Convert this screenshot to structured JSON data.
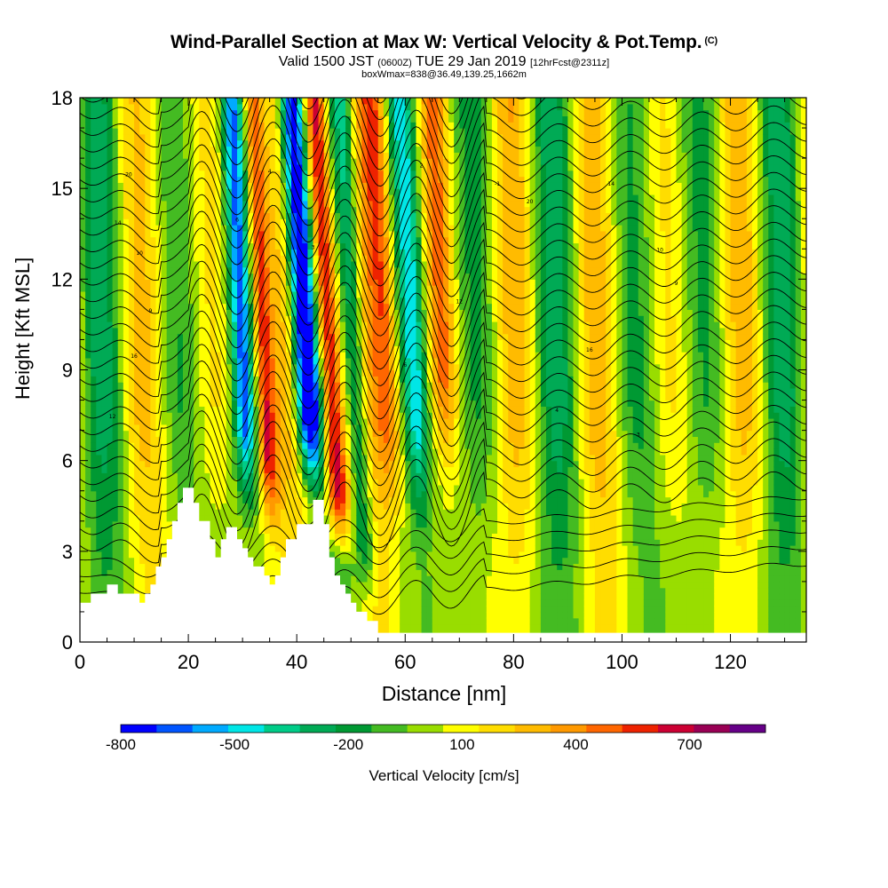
{
  "header": {
    "title": "Wind-Parallel Section at Max W: Vertical Velocity & Pot.Temp.",
    "title_mark": "(C)",
    "valid_prefix": "Valid 1500 JST",
    "valid_zulu": "(0600Z)",
    "valid_date": "TUE 29 Jan 2019",
    "forecast": "[12hrFcst@2311z]",
    "box_info": "boxWmax=838@36.49,139.25,1662m"
  },
  "chart_data": {
    "type": "heatmap",
    "xlabel": "Distance [nm]",
    "ylabel": "Height [Kft MSL]",
    "xlim": [
      0,
      134
    ],
    "ylim": [
      0,
      18
    ],
    "x_ticks": [
      0,
      20,
      40,
      60,
      80,
      100,
      120
    ],
    "y_ticks": [
      0,
      3,
      6,
      9,
      12,
      15,
      18
    ],
    "colorbar": {
      "label": "Vertical Velocity [cm/s]",
      "tick_labels": [
        "-800",
        "-500",
        "-200",
        "100",
        "400",
        "700"
      ],
      "tick_values": [
        -800,
        -500,
        -200,
        100,
        400,
        700
      ],
      "range": [
        -800,
        900
      ],
      "colors": [
        "#0000ff",
        "#0055ff",
        "#00aaff",
        "#00e6e6",
        "#00cc88",
        "#00aa55",
        "#009933",
        "#44bb22",
        "#99dd00",
        "#ffff00",
        "#ffdd00",
        "#ffbb00",
        "#ff9900",
        "#ff6600",
        "#ee2200",
        "#cc0033",
        "#990055",
        "#660088"
      ]
    },
    "terrain": [
      [
        0,
        1.3
      ],
      [
        2,
        1.3
      ],
      [
        2,
        1.6
      ],
      [
        5,
        1.6
      ],
      [
        5,
        1.9
      ],
      [
        7,
        1.9
      ],
      [
        7,
        1.6
      ],
      [
        11,
        1.6
      ],
      [
        11,
        1.3
      ],
      [
        12,
        1.3
      ],
      [
        12,
        1.6
      ],
      [
        13,
        1.6
      ],
      [
        13,
        1.9
      ],
      [
        14,
        1.9
      ],
      [
        14,
        2.5
      ],
      [
        15,
        2.5
      ],
      [
        15,
        2.8
      ],
      [
        16,
        2.8
      ],
      [
        16,
        3.4
      ],
      [
        17,
        3.4
      ],
      [
        17,
        4.0
      ],
      [
        18,
        4.0
      ],
      [
        18,
        4.6
      ],
      [
        19,
        4.6
      ],
      [
        19,
        5.1
      ],
      [
        21,
        5.1
      ],
      [
        21,
        4.6
      ],
      [
        22,
        4.6
      ],
      [
        22,
        4.0
      ],
      [
        24,
        4.0
      ],
      [
        24,
        3.4
      ],
      [
        25,
        3.4
      ],
      [
        25,
        2.8
      ],
      [
        26,
        2.8
      ],
      [
        26,
        3.4
      ],
      [
        27,
        3.4
      ],
      [
        27,
        3.8
      ],
      [
        29,
        3.8
      ],
      [
        29,
        3.4
      ],
      [
        30,
        3.4
      ],
      [
        30,
        3.1
      ],
      [
        31,
        3.1
      ],
      [
        31,
        2.8
      ],
      [
        32,
        2.8
      ],
      [
        32,
        2.5
      ],
      [
        34,
        2.5
      ],
      [
        34,
        2.2
      ],
      [
        35,
        2.2
      ],
      [
        35,
        1.9
      ],
      [
        36,
        1.9
      ],
      [
        36,
        2.2
      ],
      [
        37,
        2.2
      ],
      [
        37,
        2.8
      ],
      [
        38,
        2.8
      ],
      [
        38,
        3.4
      ],
      [
        40,
        3.4
      ],
      [
        40,
        3.9
      ],
      [
        43,
        3.9
      ],
      [
        43,
        4.7
      ],
      [
        45,
        4.7
      ],
      [
        45,
        3.9
      ],
      [
        46,
        3.9
      ],
      [
        46,
        2.8
      ],
      [
        47,
        2.8
      ],
      [
        47,
        2.2
      ],
      [
        48,
        2.2
      ],
      [
        48,
        1.9
      ],
      [
        49,
        1.9
      ],
      [
        49,
        1.6
      ],
      [
        50,
        1.6
      ],
      [
        50,
        1.3
      ],
      [
        51,
        1.3
      ],
      [
        51,
        1.0
      ],
      [
        53,
        1.0
      ],
      [
        53,
        0.7
      ],
      [
        55,
        0.7
      ],
      [
        55,
        0.3
      ],
      [
        134,
        0.3
      ],
      [
        134,
        0
      ]
    ],
    "theta_labels": [
      "20",
      "14",
      "10",
      "9",
      "16",
      "12",
      "6",
      "4",
      "3",
      "2",
      "-1"
    ],
    "field_description": "stacked vertical velocity bands with strong updraft near 46-50 nm and downdraft near 40-44 nm"
  }
}
